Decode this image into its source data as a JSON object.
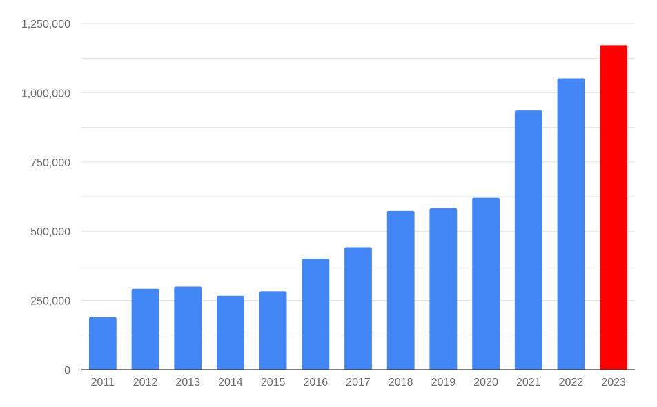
{
  "chart_data": {
    "type": "bar",
    "title": "",
    "xlabel": "",
    "ylabel": "",
    "categories": [
      "2011",
      "2012",
      "2013",
      "2014",
      "2015",
      "2016",
      "2017",
      "2018",
      "2019",
      "2020",
      "2021",
      "2022",
      "2023"
    ],
    "values": [
      190000,
      292000,
      300000,
      267000,
      283000,
      401000,
      442000,
      573000,
      583000,
      621000,
      936000,
      1052000,
      1172000
    ],
    "ylim": [
      0,
      1250000
    ],
    "y_ticks": [
      0,
      250000,
      500000,
      750000,
      1000000,
      1250000
    ],
    "y_tick_labels": [
      "0",
      "250,000",
      "500,000",
      "750,000",
      "1,000,000",
      "1,250,000"
    ],
    "gridlines": true,
    "legend": "none",
    "colors": {
      "bar": "#4285f4",
      "highlight_bar": "#ff0000",
      "grid": "#e3e3e3"
    },
    "highlight_category": "2023"
  }
}
